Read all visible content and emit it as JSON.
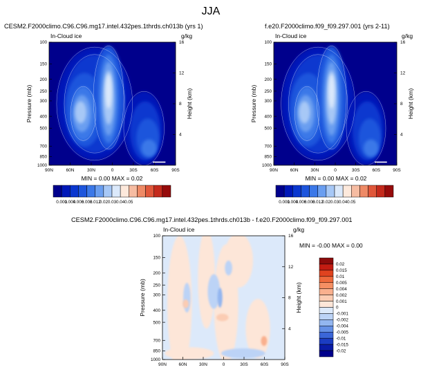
{
  "page_title": "JJA",
  "chart_data": [
    {
      "type": "contour",
      "title": "CESM2.F2000climo.C96.C96.mg17.intel.432pes.1thrds.ch013b (yrs 1)",
      "variable": "In-Cloud ice",
      "units": "g/kg",
      "ylabel": "Pressure (mb)",
      "y2label": "Height (km)",
      "x_ticks": [
        "90N",
        "60N",
        "30N",
        "0",
        "30S",
        "60S",
        "90S"
      ],
      "y_ticks": [
        "100",
        "150",
        "200",
        "250",
        "300",
        "400",
        "500",
        "700",
        "850",
        "1000"
      ],
      "y2_ticks": [
        "16",
        "12",
        "8",
        "4"
      ],
      "stats": "MIN =  0.00   MAX =  0.02",
      "colorbar_labels": [
        "0.001",
        "0.004",
        "0.006",
        "0.008",
        "0.012",
        "0.02",
        "0.03",
        "0.04",
        "0.05"
      ],
      "colors": [
        "#00008c",
        "#0018b8",
        "#0a37cf",
        "#1d55dc",
        "#3b78e8",
        "#6a9ef0",
        "#a7c8f6",
        "#dbe9fb",
        "#fde9dc",
        "#f6bca2",
        "#ee8a66",
        "#e0573a",
        "#c42a1c",
        "#960b0b"
      ]
    },
    {
      "type": "contour",
      "title": "f.e20.F2000climo.f09_f09.297.001 (yrs 2-11)",
      "variable": "In-Cloud ice",
      "units": "g/kg",
      "ylabel": "Pressure (mb)",
      "y2label": "Height (km)",
      "x_ticks": [
        "90N",
        "60N",
        "30N",
        "0",
        "30S",
        "60S",
        "90S"
      ],
      "y_ticks": [
        "100",
        "150",
        "200",
        "250",
        "300",
        "400",
        "500",
        "700",
        "850",
        "1000"
      ],
      "y2_ticks": [
        "16",
        "12",
        "8",
        "4"
      ],
      "stats": "MIN =  0.00   MAX =  0.02",
      "colorbar_labels": [
        "0.001",
        "0.004",
        "0.006",
        "0.008",
        "0.012",
        "0.02",
        "0.03",
        "0.04",
        "0.05"
      ],
      "colors": [
        "#00008c",
        "#0018b8",
        "#0a37cf",
        "#1d55dc",
        "#3b78e8",
        "#6a9ef0",
        "#a7c8f6",
        "#dbe9fb",
        "#fde9dc",
        "#f6bca2",
        "#ee8a66",
        "#e0573a",
        "#c42a1c",
        "#960b0b"
      ]
    },
    {
      "type": "contour",
      "title": "CESM2.F2000climo.C96.C96.mg17.intel.432pes.1thrds.ch013b - f.e20.F2000climo.f09_f09.297.001",
      "variable": "In-Cloud ice",
      "units": "g/kg",
      "ylabel": "Pressure (mb)",
      "y2label": "Height (km)",
      "x_ticks": [
        "90N",
        "60N",
        "30N",
        "0",
        "30S",
        "60S",
        "90S"
      ],
      "y_ticks": [
        "100",
        "150",
        "200",
        "250",
        "300",
        "400",
        "500",
        "700",
        "850",
        "1000"
      ],
      "y2_ticks": [
        "16",
        "12",
        "8",
        "4"
      ],
      "stats": "MIN = -0.00   MAX =  0.00",
      "colorbar_labels": [
        "0.02",
        "0.015",
        "0.01",
        "0.005",
        "0.004",
        "0.002",
        "0.001",
        "0",
        "-0.001",
        "-0.002",
        "-0.004",
        "-0.005",
        "-0.01",
        "-0.015",
        "-0.02"
      ],
      "colors": [
        "#8c0b0b",
        "#c31c12",
        "#e0431f",
        "#ee6a3c",
        "#f58f63",
        "#f9b08e",
        "#fbccb3",
        "#fde6d8",
        "#dce9fa",
        "#bcd3f6",
        "#93b6f0",
        "#6590e6",
        "#3b66d8",
        "#1b3cc2",
        "#0a1ba6",
        "#00008c"
      ]
    }
  ]
}
